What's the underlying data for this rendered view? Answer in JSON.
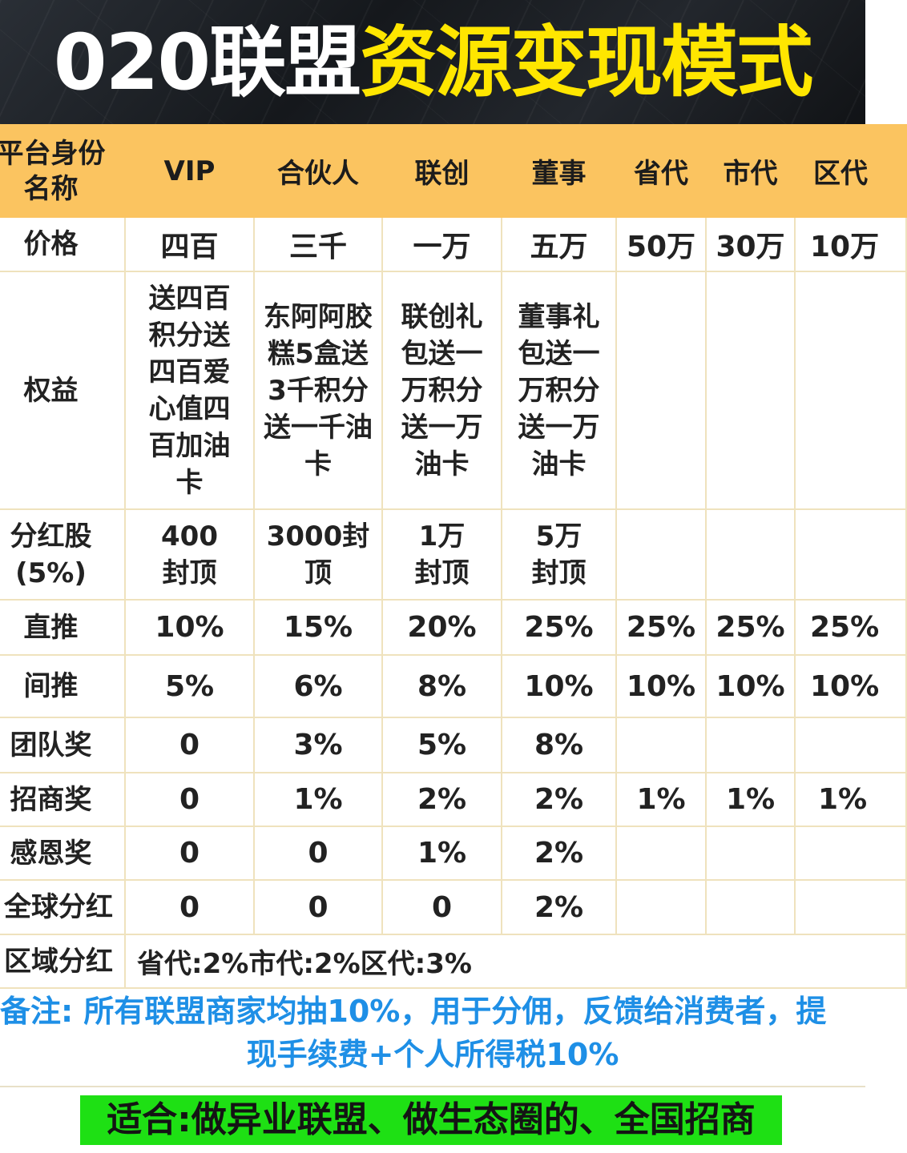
{
  "title": {
    "part1": "020联盟",
    "part2": "资源变现模式"
  },
  "table": {
    "header": [
      "平台身份名称",
      "VIP",
      "合伙人",
      "联创",
      "董事",
      "省代",
      "市代",
      "区代"
    ],
    "rows": {
      "price": {
        "label": "价格",
        "cells": [
          "四百",
          "三千",
          "一万",
          "五万",
          "50万",
          "30万",
          "10万"
        ]
      },
      "benefit": {
        "label": "权益",
        "cells": [
          "送四百积分送四百爱心值四百加油卡",
          "东阿阿胶糕5盒送3千积分送一千油卡",
          "联创礼包送一万积分送一万油卡",
          "董事礼包送一万积分送一万油卡",
          "",
          "",
          ""
        ]
      },
      "dividend_shares": {
        "label": "分红股(5%)",
        "cells": [
          "400封顶",
          "3000封顶",
          "1万封顶",
          "5万封顶",
          "",
          "",
          ""
        ]
      },
      "direct": {
        "label": "直推",
        "cells": [
          "10%",
          "15%",
          "20%",
          "25%",
          "25%",
          "25%",
          "25%"
        ]
      },
      "indirect": {
        "label": "间推",
        "cells": [
          "5%",
          "6%",
          "8%",
          "10%",
          "10%",
          "10%",
          "10%"
        ]
      },
      "team": {
        "label": "团队奖",
        "cells": [
          "0",
          "3%",
          "5%",
          "8%",
          "",
          "",
          ""
        ]
      },
      "recruit": {
        "label": "招商奖",
        "cells": [
          "0",
          "1%",
          "2%",
          "2%",
          "1%",
          "1%",
          "1%"
        ]
      },
      "gratitude": {
        "label": "感恩奖",
        "cells": [
          "0",
          "0",
          "1%",
          "2%",
          "",
          "",
          ""
        ]
      },
      "global": {
        "label": "全球分红",
        "cells": [
          "0",
          "0",
          "0",
          "2%",
          "",
          "",
          ""
        ]
      },
      "region": {
        "label": "区域分红",
        "text": "省代:2%市代:2%区代:3%"
      }
    }
  },
  "note": {
    "line1": "备注: 所有联盟商家均抽10%，用于分佣，反馈给消费者，提",
    "line2": "现手续费+个人所得税10%"
  },
  "footer": "适合:做异业联盟、做生态圈的、全国招商",
  "colors": {
    "header_bg": "#fbc460",
    "title_yellow": "#ffe600",
    "note_blue": "#1e8fe6",
    "footer_green": "#1ee014"
  }
}
